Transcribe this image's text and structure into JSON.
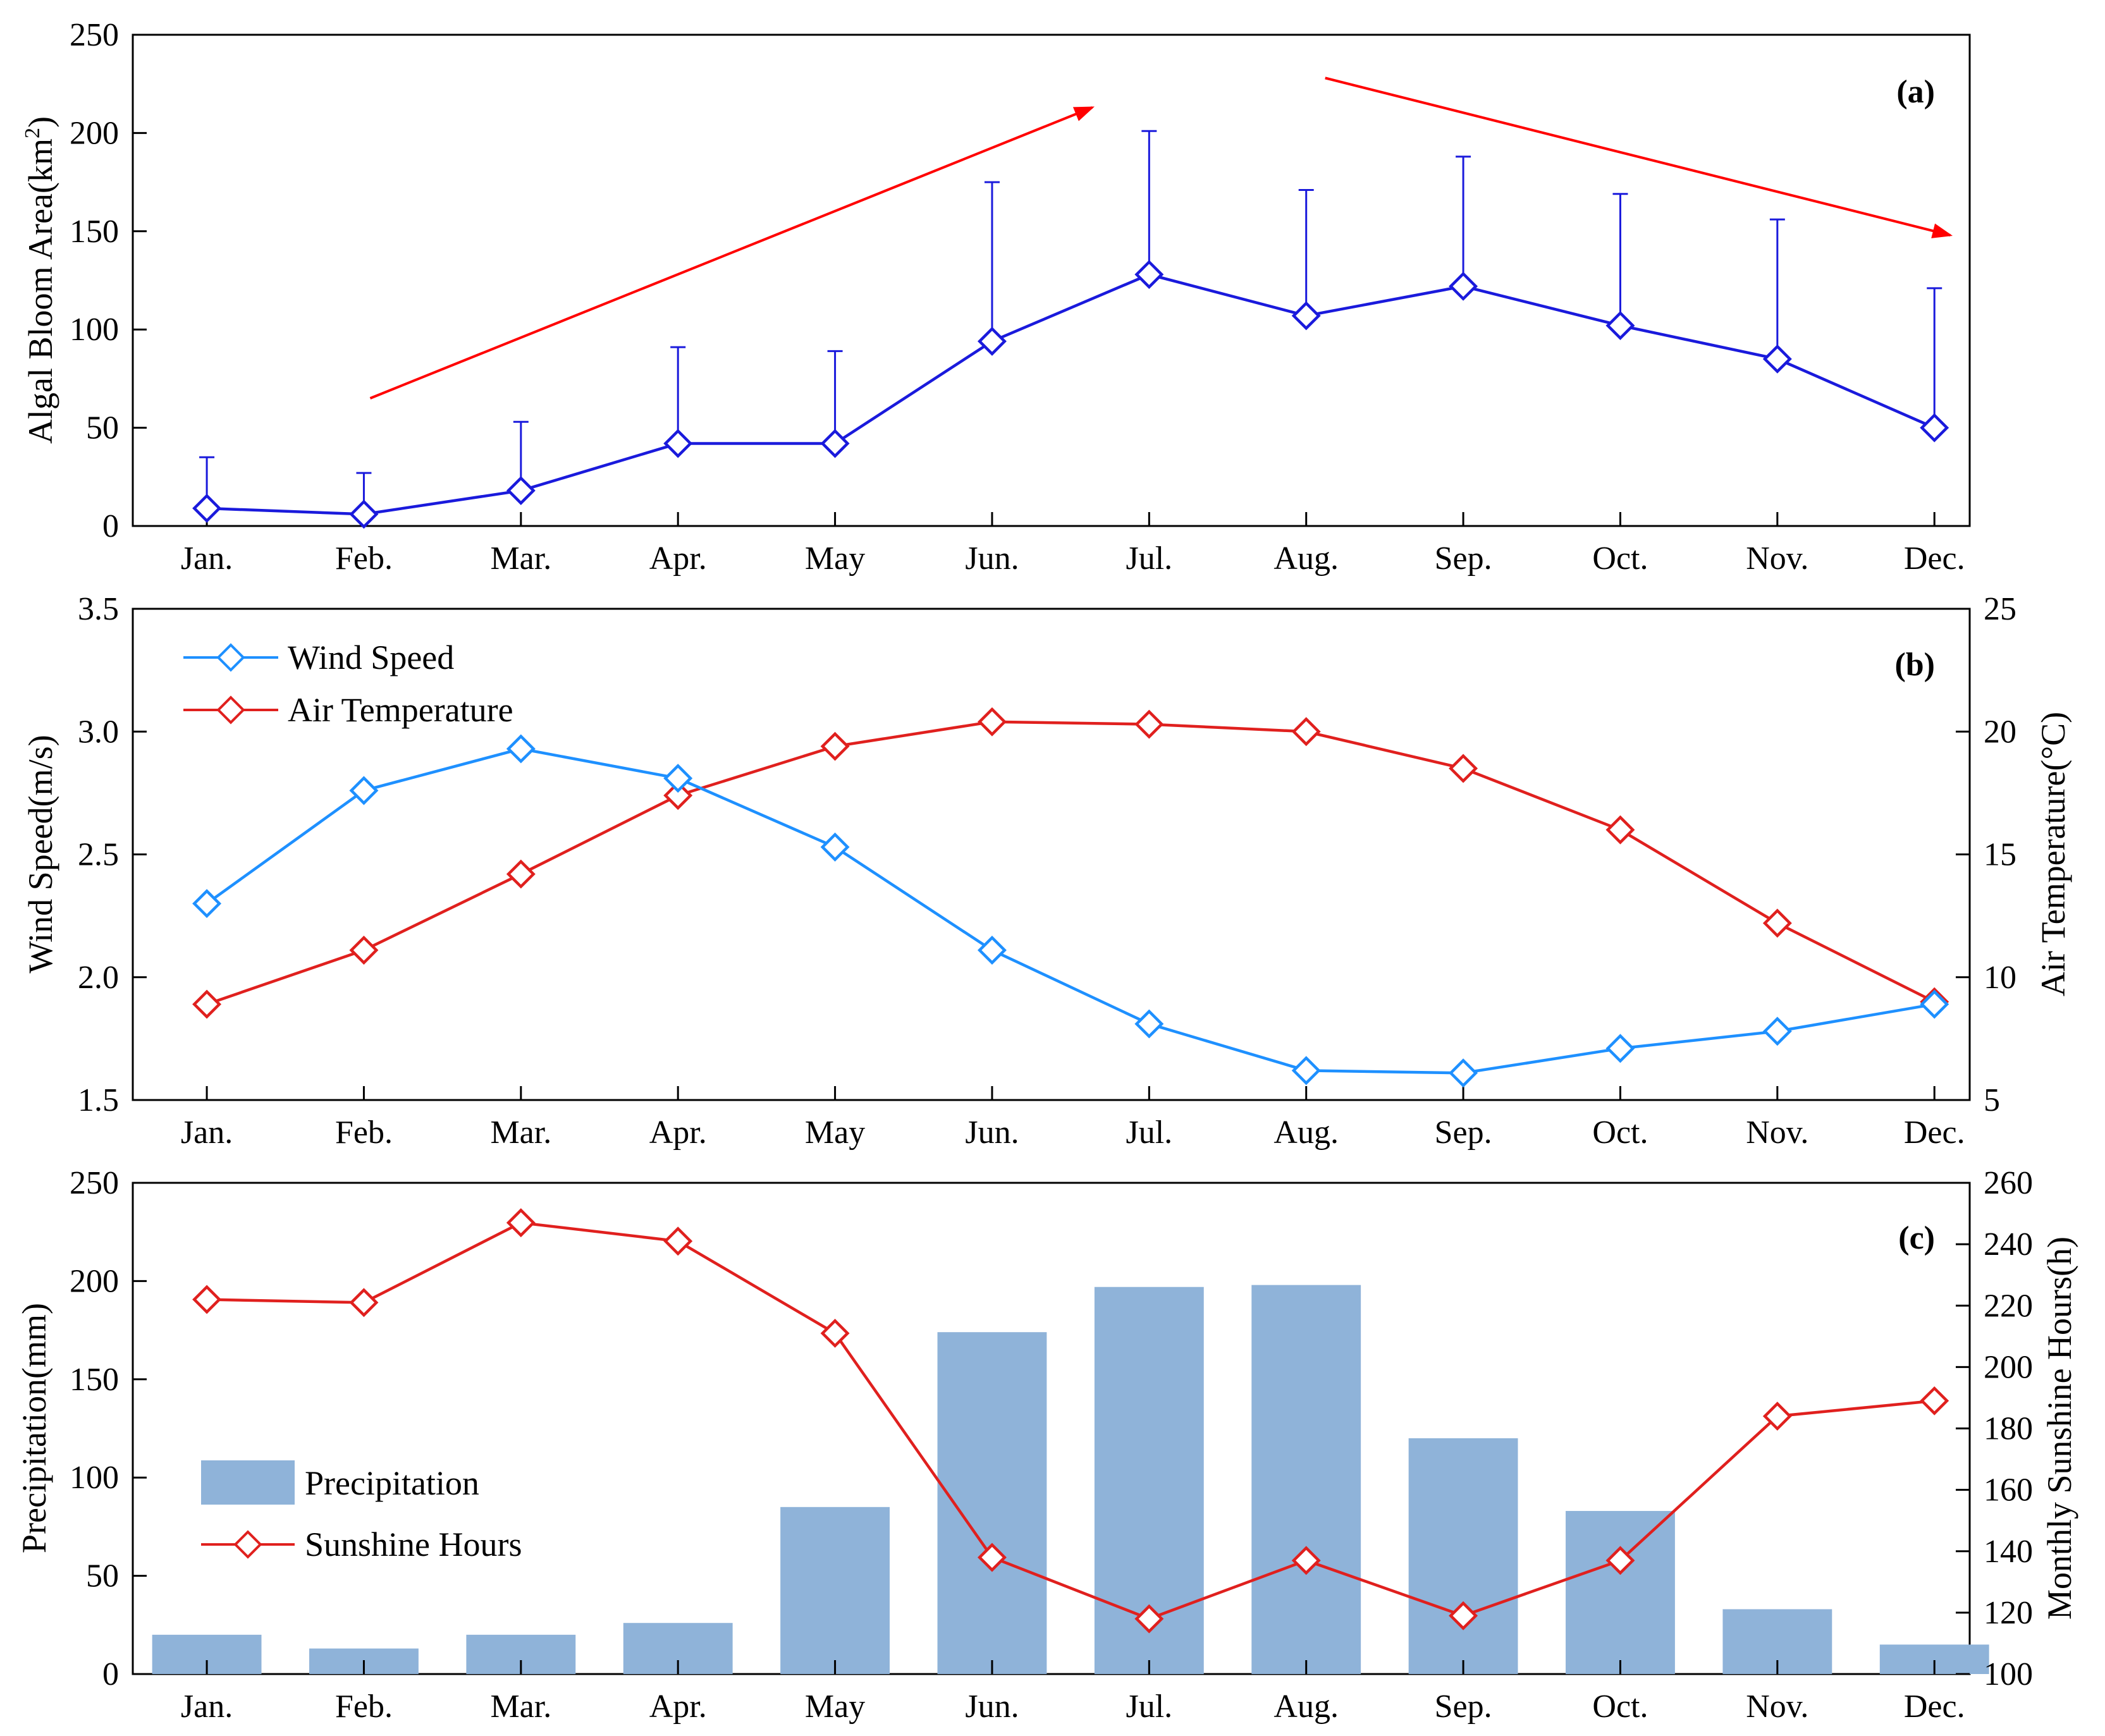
{
  "chart_data": [
    {
      "panel": "(a)",
      "type": "line",
      "categories": [
        "Jan.",
        "Feb.",
        "Mar.",
        "Apr.",
        "May",
        "Jun.",
        "Jul.",
        "Aug.",
        "Sep.",
        "Oct.",
        "Nov.",
        "Dec."
      ],
      "ylabel": "Algal Bloom Area(km²)",
      "ylim": [
        0,
        250
      ],
      "yticks": [
        0,
        50,
        100,
        150,
        200,
        250
      ],
      "series": [
        {
          "name": "Algal Bloom Area",
          "color": "#1a1adc",
          "values": [
            9,
            6,
            18,
            42,
            42,
            94,
            128,
            107,
            122,
            102,
            85,
            50
          ],
          "error_upper": [
            35,
            27,
            53,
            91,
            89,
            175,
            201,
            171,
            188,
            169,
            156,
            121
          ]
        }
      ],
      "trend_arrows": [
        {
          "label": "increasing trend",
          "from": [
            "Feb.",
            65
          ],
          "to": [
            "Jul.",
            213
          ],
          "color": "#ff0000"
        },
        {
          "label": "decreasing trend",
          "from": [
            "Aug.",
            228
          ],
          "to": [
            "Dec.",
            148
          ],
          "color": "#ff0000"
        }
      ]
    },
    {
      "panel": "(b)",
      "type": "line",
      "categories": [
        "Jan.",
        "Feb.",
        "Mar.",
        "Apr.",
        "May",
        "Jun.",
        "Jul.",
        "Aug.",
        "Sep.",
        "Oct.",
        "Nov.",
        "Dec."
      ],
      "ylabel": "Wind Speed(m/s)",
      "ylim": [
        1.5,
        3.5
      ],
      "yticks": [
        "1.5",
        "2.0",
        "2.5",
        "3.0",
        "3.5"
      ],
      "y2label": "Air Temperature(°C)",
      "y2lim": [
        5,
        25
      ],
      "y2ticks": [
        5,
        10,
        15,
        20,
        25
      ],
      "legend_position": "top-left",
      "series": [
        {
          "name": "Wind Speed",
          "axis": "left",
          "color": "#1e90ff",
          "values": [
            2.3,
            2.76,
            2.93,
            2.81,
            2.53,
            2.11,
            1.81,
            1.62,
            1.61,
            1.71,
            1.78,
            1.89
          ]
        },
        {
          "name": "Air Temperature",
          "axis": "right",
          "color": "#e0201e",
          "values": [
            8.9,
            11.1,
            14.2,
            17.4,
            19.4,
            20.4,
            20.3,
            20.0,
            18.5,
            16.0,
            12.2,
            9.0
          ]
        }
      ]
    },
    {
      "panel": "(c)",
      "type": "bar+line",
      "categories": [
        "Jan.",
        "Feb.",
        "Mar.",
        "Apr.",
        "May",
        "Jun.",
        "Jul.",
        "Aug.",
        "Sep.",
        "Oct.",
        "Nov.",
        "Dec."
      ],
      "ylabel": "Precipitation(mm)",
      "ylim": [
        0,
        250
      ],
      "yticks": [
        0,
        50,
        100,
        150,
        200,
        250
      ],
      "y2label": "Monthly Sunshine Hours(h)",
      "y2lim": [
        100,
        260
      ],
      "y2ticks": [
        100,
        120,
        140,
        160,
        180,
        200,
        220,
        240,
        260
      ],
      "legend_position": "bottom-left",
      "series": [
        {
          "name": "Precipitation",
          "type": "bar",
          "axis": "left",
          "color": "#8fb3d9",
          "values": [
            20,
            13,
            20,
            26,
            85,
            174,
            197,
            198,
            120,
            83,
            33,
            15
          ]
        },
        {
          "name": "Sunshine Hours",
          "type": "line",
          "axis": "right",
          "color": "#e0201e",
          "values": [
            222,
            221,
            247,
            241,
            211,
            138,
            118,
            137,
            119,
            137,
            184,
            189
          ]
        }
      ]
    }
  ]
}
